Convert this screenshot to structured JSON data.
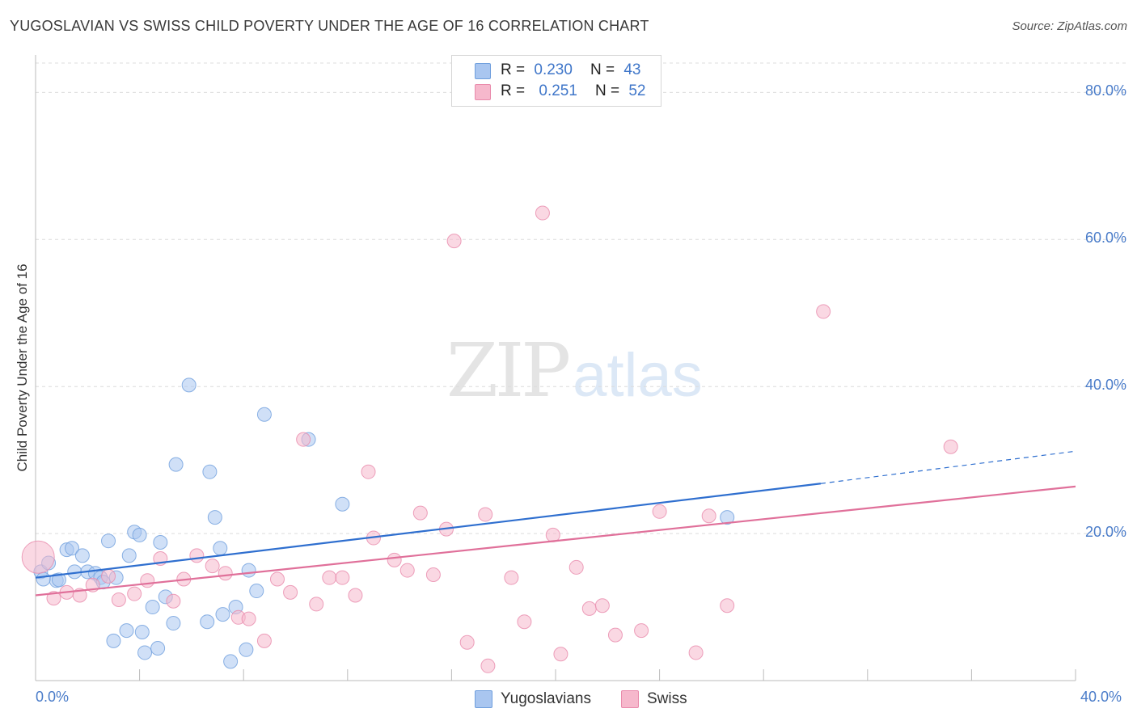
{
  "title": "YUGOSLAVIAN VS SWISS CHILD POVERTY UNDER THE AGE OF 16 CORRELATION CHART",
  "source": "Source: ZipAtlas.com",
  "watermark": {
    "zip": "ZIP",
    "atlas": "atlas"
  },
  "stats": [
    {
      "r_label": "R =",
      "r_value": "0.230",
      "n_label": "N =",
      "n_value": "43",
      "color": "#a9c6f0"
    },
    {
      "r_label": "R =",
      "r_value": "0.251",
      "n_label": "N =",
      "n_value": "52",
      "color": "#f6b8cc"
    }
  ],
  "legend": [
    {
      "label": "Yugoslavians",
      "color": "#a9c6f0"
    },
    {
      "label": "Swiss",
      "color": "#f6b8cc"
    }
  ],
  "chart_data": {
    "type": "scatter",
    "title": "YUGOSLAVIAN VS SWISS CHILD POVERTY UNDER THE AGE OF 16 CORRELATION CHART",
    "xlabel": "",
    "ylabel": "Child Poverty Under the Age of 16",
    "xlim": [
      0,
      40
    ],
    "ylim": [
      0,
      84
    ],
    "x_tick_labels": [
      "0.0%",
      "40.0%"
    ],
    "y_ticks": [
      20,
      40,
      60,
      80
    ],
    "y_tick_labels": [
      "20.0%",
      "40.0%",
      "60.0%",
      "80.0%"
    ],
    "grid": true,
    "legend_position": "bottom",
    "series": [
      {
        "name": "Yugoslavians",
        "color": "#a9c6f0",
        "stroke": "#6f9fdd",
        "line_color": "#2f6fcf",
        "trend": {
          "x0": 0,
          "y0": 14.0,
          "x1": 30.2,
          "y1": 26.8,
          "dash_x1": 40,
          "dash_y1": 31.2
        },
        "points": [
          [
            0.2,
            14.8
          ],
          [
            0.5,
            16.0
          ],
          [
            0.8,
            13.6
          ],
          [
            1.2,
            17.8
          ],
          [
            1.4,
            18.0
          ],
          [
            1.5,
            14.8
          ],
          [
            1.8,
            17.0
          ],
          [
            2.0,
            14.8
          ],
          [
            2.3,
            14.6
          ],
          [
            2.5,
            14.0
          ],
          [
            2.6,
            13.4
          ],
          [
            2.8,
            19.0
          ],
          [
            3.1,
            14.0
          ],
          [
            3.5,
            6.8
          ],
          [
            3.6,
            17.0
          ],
          [
            3.8,
            20.2
          ],
          [
            4.0,
            19.8
          ],
          [
            4.1,
            6.6
          ],
          [
            4.2,
            3.8
          ],
          [
            4.5,
            10.0
          ],
          [
            4.7,
            4.4
          ],
          [
            4.8,
            18.8
          ],
          [
            5.0,
            11.4
          ],
          [
            5.3,
            7.8
          ],
          [
            5.4,
            29.4
          ],
          [
            5.9,
            40.2
          ],
          [
            6.6,
            8.0
          ],
          [
            6.7,
            28.4
          ],
          [
            6.9,
            22.2
          ],
          [
            7.1,
            18.0
          ],
          [
            7.2,
            9.0
          ],
          [
            7.5,
            2.6
          ],
          [
            7.7,
            10.0
          ],
          [
            8.1,
            4.2
          ],
          [
            8.2,
            15.0
          ],
          [
            8.5,
            12.2
          ],
          [
            8.8,
            36.2
          ],
          [
            10.5,
            32.8
          ],
          [
            11.8,
            24.0
          ],
          [
            3.0,
            5.4
          ],
          [
            0.3,
            13.8
          ],
          [
            0.9,
            13.7
          ],
          [
            26.6,
            22.2
          ]
        ]
      },
      {
        "name": "Swiss",
        "color": "#f6b8cc",
        "stroke": "#e98aab",
        "line_color": "#e0709a",
        "trend": {
          "x0": 0,
          "y0": 11.6,
          "x1": 40,
          "y1": 26.4
        },
        "points": [
          [
            0.1,
            16.8
          ],
          [
            0.7,
            11.2
          ],
          [
            1.2,
            12.0
          ],
          [
            1.7,
            11.6
          ],
          [
            2.2,
            13.0
          ],
          [
            2.8,
            14.2
          ],
          [
            3.2,
            11.0
          ],
          [
            3.8,
            11.8
          ],
          [
            4.3,
            13.6
          ],
          [
            4.8,
            16.6
          ],
          [
            5.3,
            10.8
          ],
          [
            5.7,
            13.8
          ],
          [
            6.2,
            17.0
          ],
          [
            6.8,
            15.6
          ],
          [
            7.3,
            14.6
          ],
          [
            7.8,
            8.6
          ],
          [
            8.2,
            8.4
          ],
          [
            8.8,
            5.4
          ],
          [
            9.3,
            13.8
          ],
          [
            9.8,
            12.0
          ],
          [
            10.3,
            32.8
          ],
          [
            10.8,
            10.4
          ],
          [
            11.3,
            14.0
          ],
          [
            11.8,
            14.0
          ],
          [
            12.3,
            11.6
          ],
          [
            12.8,
            28.4
          ],
          [
            13.0,
            19.4
          ],
          [
            13.8,
            16.4
          ],
          [
            14.3,
            15.0
          ],
          [
            14.8,
            22.8
          ],
          [
            15.3,
            14.4
          ],
          [
            15.8,
            20.6
          ],
          [
            16.1,
            59.8
          ],
          [
            16.6,
            5.2
          ],
          [
            17.3,
            22.6
          ],
          [
            17.4,
            2.0
          ],
          [
            18.3,
            14.0
          ],
          [
            18.8,
            8.0
          ],
          [
            19.5,
            63.6
          ],
          [
            19.9,
            19.8
          ],
          [
            20.2,
            3.6
          ],
          [
            20.8,
            15.4
          ],
          [
            21.3,
            9.8
          ],
          [
            21.8,
            10.2
          ],
          [
            22.3,
            6.2
          ],
          [
            23.3,
            6.8
          ],
          [
            24.0,
            23.0
          ],
          [
            25.4,
            3.8
          ],
          [
            25.9,
            22.4
          ],
          [
            26.6,
            10.2
          ],
          [
            30.3,
            50.2
          ],
          [
            35.2,
            31.8
          ]
        ]
      }
    ]
  }
}
